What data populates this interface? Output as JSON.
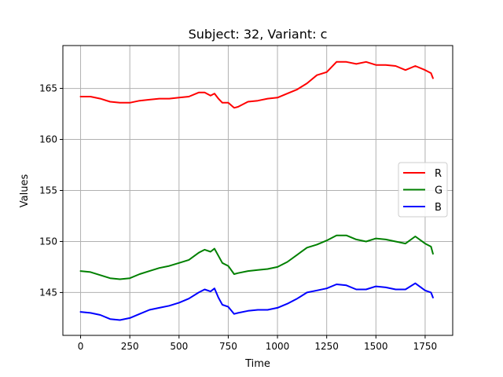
{
  "chart_data": {
    "type": "line",
    "title": "Subject: 32, Variant: c",
    "xlabel": "Time",
    "ylabel": "Values",
    "xlim": [
      -90,
      1890
    ],
    "ylim": [
      140.8,
      169.2
    ],
    "xticks": [
      0,
      250,
      500,
      750,
      1000,
      1250,
      1500,
      1750
    ],
    "yticks": [
      145,
      150,
      155,
      160,
      165
    ],
    "grid": true,
    "legend_position": "center-right",
    "x": [
      0,
      50,
      100,
      150,
      200,
      250,
      300,
      350,
      400,
      450,
      500,
      550,
      600,
      630,
      660,
      680,
      700,
      720,
      750,
      780,
      800,
      850,
      900,
      950,
      1000,
      1050,
      1100,
      1150,
      1200,
      1250,
      1300,
      1350,
      1400,
      1450,
      1500,
      1550,
      1600,
      1650,
      1700,
      1750,
      1780,
      1790
    ],
    "series": [
      {
        "name": "R",
        "color": "#ff0000",
        "values": [
          164.2,
          164.2,
          164.0,
          163.7,
          163.6,
          163.6,
          163.8,
          163.9,
          164.0,
          164.0,
          164.1,
          164.2,
          164.6,
          164.6,
          164.3,
          164.5,
          164.0,
          163.6,
          163.6,
          163.1,
          163.2,
          163.7,
          163.8,
          164.0,
          164.1,
          164.5,
          164.9,
          165.5,
          166.3,
          166.6,
          167.6,
          167.6,
          167.4,
          167.6,
          167.3,
          167.3,
          167.2,
          166.8,
          167.2,
          166.8,
          166.5,
          166.0
        ]
      },
      {
        "name": "G",
        "color": "#008000",
        "values": [
          147.1,
          147.0,
          146.7,
          146.4,
          146.3,
          146.4,
          146.8,
          147.1,
          147.4,
          147.6,
          147.9,
          148.2,
          148.9,
          149.2,
          149.0,
          149.3,
          148.6,
          147.9,
          147.6,
          146.8,
          146.9,
          147.1,
          147.2,
          147.3,
          147.5,
          148.0,
          148.7,
          149.4,
          149.7,
          150.1,
          150.6,
          150.6,
          150.2,
          150.0,
          150.3,
          150.2,
          150.0,
          149.8,
          150.5,
          149.8,
          149.5,
          148.8
        ]
      },
      {
        "name": "B",
        "color": "#0000ff",
        "values": [
          143.1,
          143.0,
          142.8,
          142.4,
          142.3,
          142.5,
          142.9,
          143.3,
          143.5,
          143.7,
          144.0,
          144.4,
          145.0,
          145.3,
          145.1,
          145.4,
          144.5,
          143.8,
          143.6,
          142.9,
          143.0,
          143.2,
          143.3,
          143.3,
          143.5,
          143.9,
          144.4,
          145.0,
          145.2,
          145.4,
          145.8,
          145.7,
          145.3,
          145.3,
          145.6,
          145.5,
          145.3,
          145.3,
          145.9,
          145.2,
          145.0,
          144.5
        ]
      }
    ]
  }
}
